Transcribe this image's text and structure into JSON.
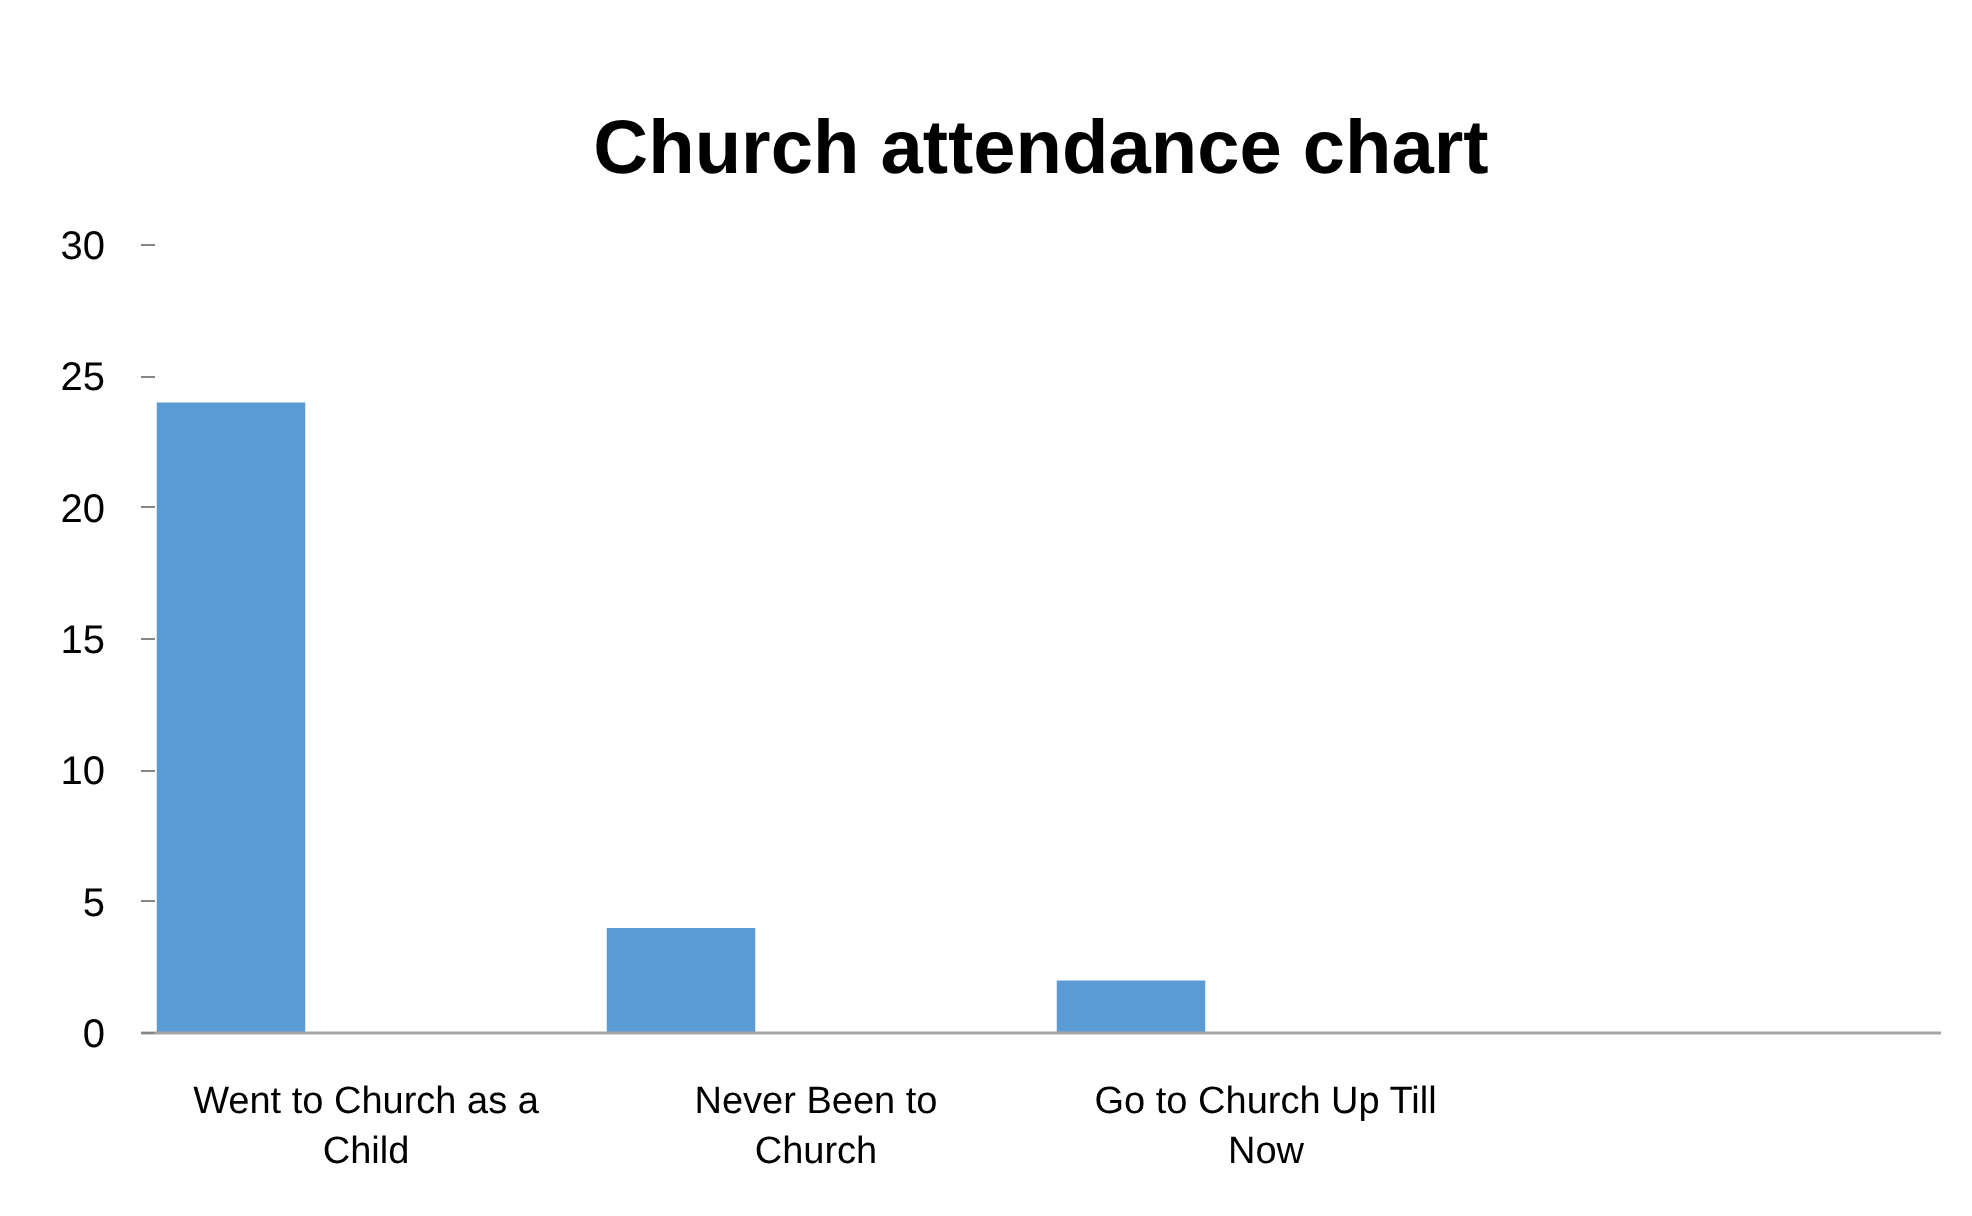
{
  "chart_data": {
    "type": "bar",
    "title": "Church attendance chart",
    "categories": [
      "Went to Church as a Child",
      "Never Been to Church",
      "Go to Church Up Till Now",
      null
    ],
    "values": [
      24,
      4,
      2,
      null
    ],
    "color": "#5b9bd5",
    "ylim": [
      0,
      30
    ],
    "yticks": [
      0,
      5,
      10,
      15,
      20,
      25,
      30
    ]
  }
}
